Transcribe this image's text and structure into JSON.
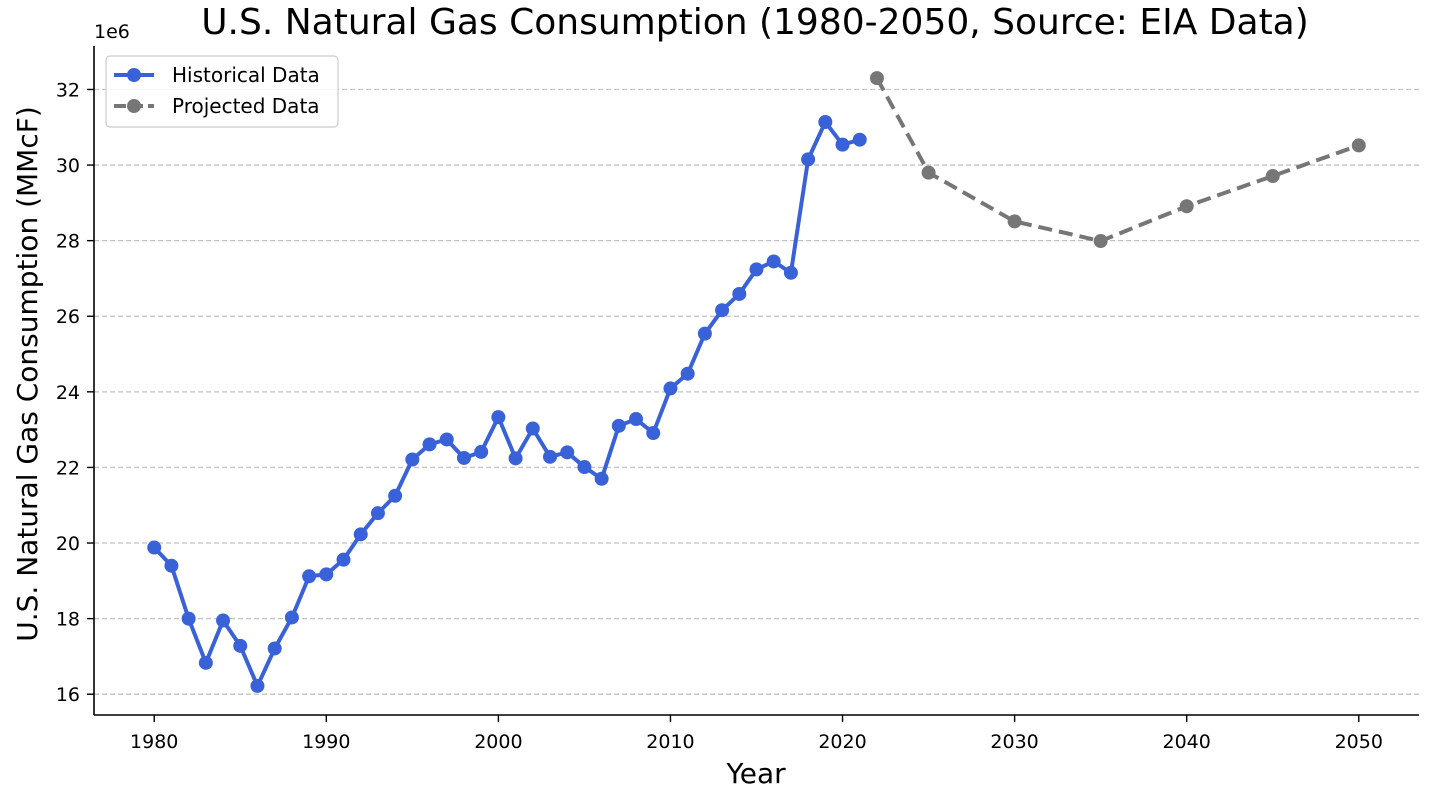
{
  "chart_data": {
    "type": "line",
    "title": "U.S. Natural Gas Consumption (1980-2050, Source: EIA Data)",
    "xlabel": "Year",
    "ylabel": "U.S. Natural Gas Consumption (MMcF)",
    "y_offset_label": "1e6",
    "xlim": [
      1976.5,
      2053.5
    ],
    "ylim": [
      15.45,
      33.15
    ],
    "y_scale_factor": 1000000,
    "x_ticks": [
      1980,
      1990,
      2000,
      2010,
      2020,
      2030,
      2040,
      2050
    ],
    "y_ticks": [
      16,
      18,
      20,
      22,
      24,
      26,
      28,
      30,
      32
    ],
    "grid": "horizontal dashed",
    "legend_position": "top-left",
    "series": [
      {
        "name": "Historical Data",
        "color": "#3a62d8",
        "style": "solid",
        "x": [
          1980,
          1981,
          1982,
          1983,
          1984,
          1985,
          1986,
          1987,
          1988,
          1989,
          1990,
          1991,
          1992,
          1993,
          1994,
          1995,
          1996,
          1997,
          1998,
          1999,
          2000,
          2001,
          2002,
          2003,
          2004,
          2005,
          2006,
          2007,
          2008,
          2009,
          2010,
          2011,
          2012,
          2013,
          2014,
          2015,
          2016,
          2017,
          2018,
          2019,
          2020,
          2021
        ],
        "values": [
          19.88,
          19.4,
          18.0,
          16.83,
          17.95,
          17.28,
          16.22,
          17.21,
          18.03,
          19.12,
          19.17,
          19.56,
          20.23,
          20.79,
          21.25,
          22.21,
          22.61,
          22.74,
          22.25,
          22.41,
          23.33,
          22.24,
          23.03,
          22.28,
          22.4,
          22.01,
          21.7,
          23.1,
          23.28,
          22.91,
          24.09,
          24.48,
          25.54,
          26.16,
          26.59,
          27.24,
          27.45,
          27.15,
          30.15,
          31.14,
          30.54,
          30.67
        ]
      },
      {
        "name": "Projected Data",
        "color": "#767676",
        "style": "dashed",
        "x": [
          2022,
          2025,
          2030,
          2035,
          2040,
          2045,
          2050
        ],
        "values": [
          32.3,
          29.8,
          28.51,
          27.99,
          28.91,
          29.71,
          30.52
        ]
      }
    ]
  }
}
